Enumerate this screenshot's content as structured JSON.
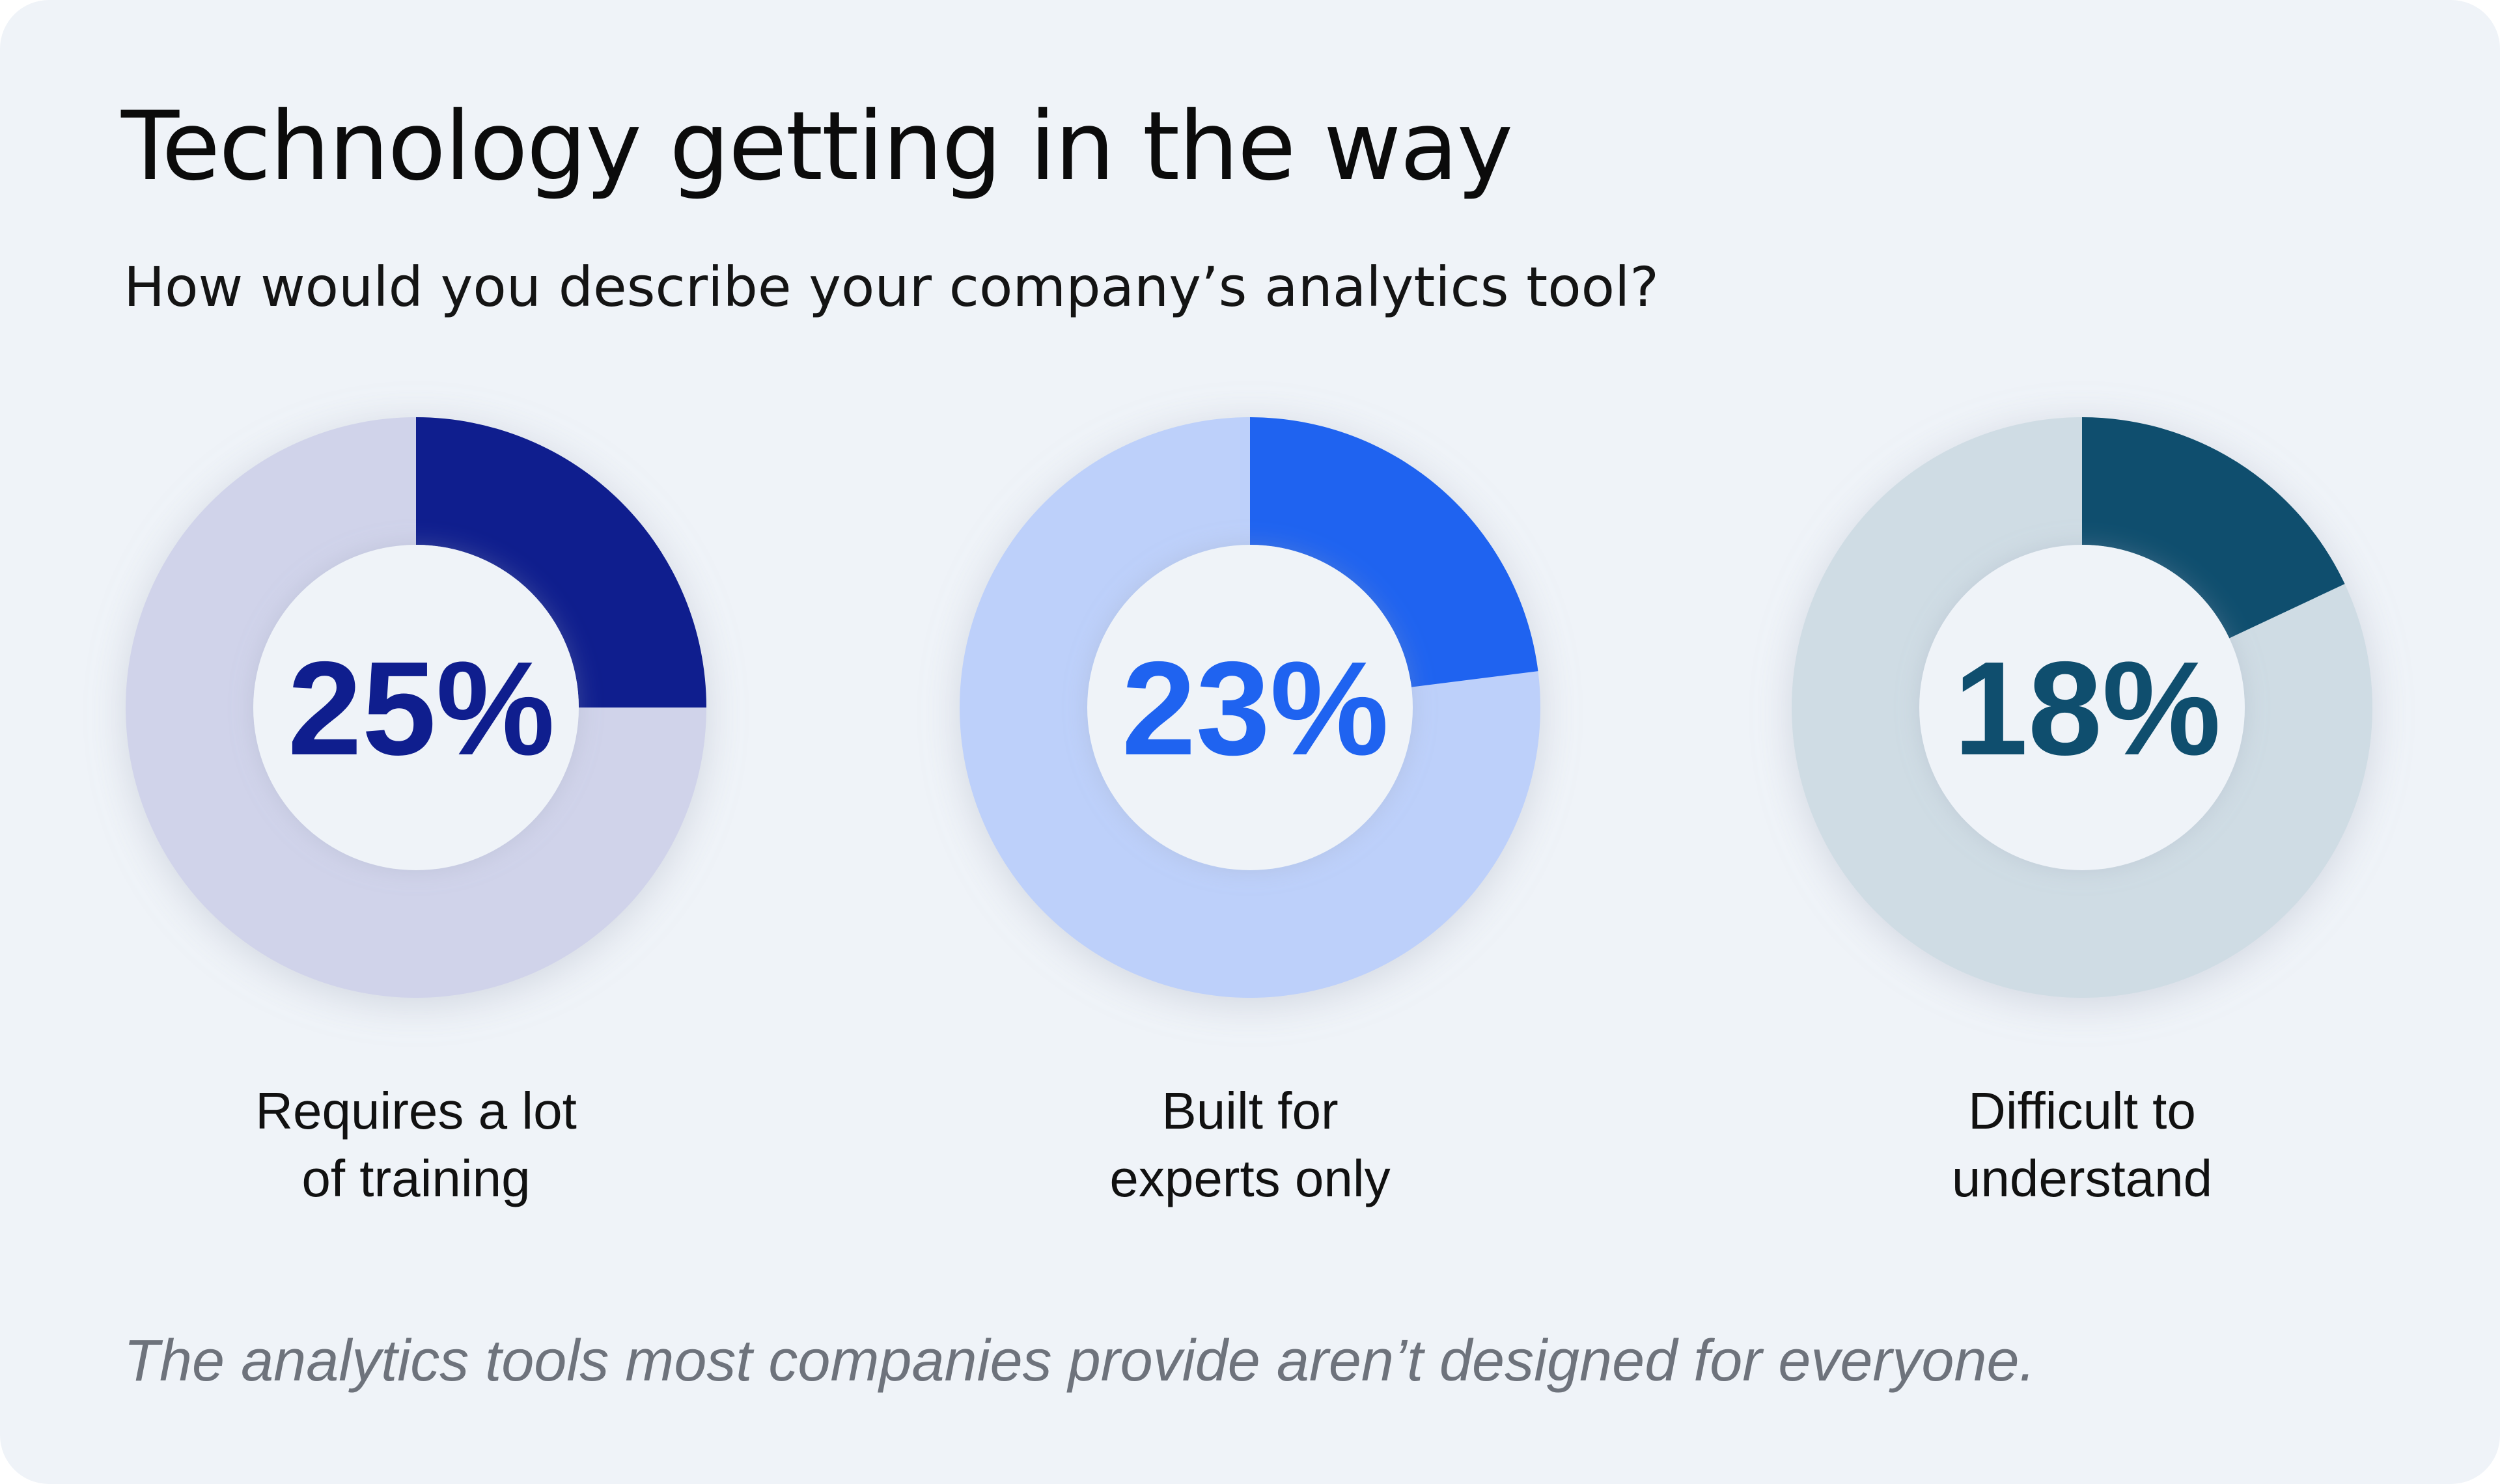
{
  "title": "Technology getting in the way",
  "subtitle": "How would you describe your company’s analytics tool?",
  "footer": "The analytics tools most companies provide aren’t designed for everyone.",
  "chart_data": [
    {
      "type": "pie",
      "variant": "donut",
      "value": 25,
      "remainder": 75,
      "center_label": "25%",
      "label_lines": [
        "Requires a lot",
        "of training"
      ],
      "color": "#0f1e8e",
      "track_color": "#d0d3ea"
    },
    {
      "type": "pie",
      "variant": "donut",
      "value": 23,
      "remainder": 77,
      "center_label": "23%",
      "label_lines": [
        "Built for",
        "experts only"
      ],
      "color": "#1f63f0",
      "track_color": "#bdd0fa"
    },
    {
      "type": "pie",
      "variant": "donut",
      "value": 18,
      "remainder": 82,
      "center_label": "18%",
      "label_lines": [
        "Difficult to",
        "understand"
      ],
      "color": "#0f4e6e",
      "track_color": "#cfdce4"
    }
  ]
}
